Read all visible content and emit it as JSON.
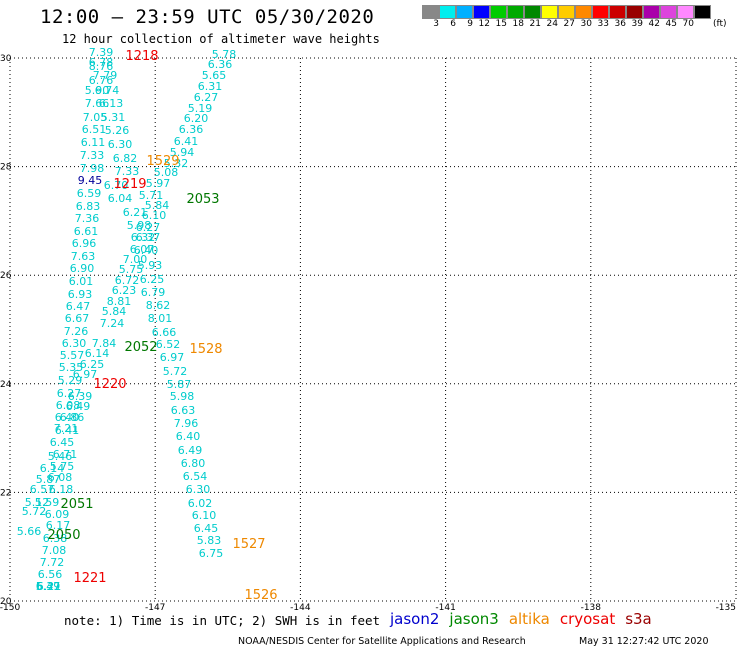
{
  "header": {
    "title": "12:00 – 23:59 UTC 05/30/2020",
    "subtitle": "12 hour collection of altimeter wave heights"
  },
  "legend": {
    "unit": "(ft)",
    "bins": [
      {
        "label": "3",
        "color": "#888888"
      },
      {
        "label": "6",
        "color": "#00eeee"
      },
      {
        "label": "9",
        "color": "#00b0ff"
      },
      {
        "label": "12",
        "color": "#0000ff"
      },
      {
        "label": "15",
        "color": "#00cc00"
      },
      {
        "label": "18",
        "color": "#00aa00"
      },
      {
        "label": "21",
        "color": "#008800"
      },
      {
        "label": "24",
        "color": "#ffff00"
      },
      {
        "label": "27",
        "color": "#ffcc00"
      },
      {
        "label": "30",
        "color": "#ff8800"
      },
      {
        "label": "33",
        "color": "#ff0000"
      },
      {
        "label": "36",
        "color": "#cc0000"
      },
      {
        "label": "39",
        "color": "#990000"
      },
      {
        "label": "42",
        "color": "#aa00aa"
      },
      {
        "label": "45",
        "color": "#dd44dd"
      },
      {
        "label": "70",
        "color": "#ff88ff"
      },
      {
        "label": "",
        "color": "#000000"
      }
    ]
  },
  "map": {
    "lat_labels": [
      "30",
      "28",
      "26",
      "24",
      "22",
      "20"
    ],
    "lon_labels": [
      "-150",
      "-147",
      "-144",
      "-141",
      "-138",
      "-135"
    ]
  },
  "colors": {
    "cyan": "#00cccc",
    "navy": "#000099",
    "red": "#ee0000",
    "green": "#007700",
    "orange": "#ee8800"
  },
  "passes": [
    {
      "label": "1218",
      "color": "red"
    },
    {
      "label": "1219",
      "color": "red"
    },
    {
      "label": "1220",
      "color": "red"
    },
    {
      "label": "1221",
      "color": "red"
    },
    {
      "label": "1529",
      "color": "orange"
    },
    {
      "label": "1528",
      "color": "orange"
    },
    {
      "label": "1527",
      "color": "orange"
    },
    {
      "label": "1526",
      "color": "orange"
    },
    {
      "label": "2053",
      "color": "green"
    },
    {
      "label": "2052",
      "color": "green"
    },
    {
      "label": "2051",
      "color": "green"
    },
    {
      "label": "2050",
      "color": "green"
    }
  ],
  "observations": [
    {
      "v": "7.39",
      "c": "cyan"
    },
    {
      "v": "6.78",
      "c": "cyan"
    },
    {
      "v": "8.76",
      "c": "cyan"
    },
    {
      "v": "7.79",
      "c": "cyan"
    },
    {
      "v": "6.76",
      "c": "cyan"
    },
    {
      "v": "5.90",
      "c": "cyan"
    },
    {
      "v": "6.74",
      "c": "cyan"
    },
    {
      "v": "7.66",
      "c": "cyan"
    },
    {
      "v": "6.13",
      "c": "cyan"
    },
    {
      "v": "7.05",
      "c": "cyan"
    },
    {
      "v": "5.31",
      "c": "cyan"
    },
    {
      "v": "6.51",
      "c": "cyan"
    },
    {
      "v": "5.26",
      "c": "cyan"
    },
    {
      "v": "6.11",
      "c": "cyan"
    },
    {
      "v": "6.30",
      "c": "cyan"
    },
    {
      "v": "7.33",
      "c": "cyan"
    },
    {
      "v": "6.82",
      "c": "cyan"
    },
    {
      "v": "7.98",
      "c": "cyan"
    },
    {
      "v": "7.33",
      "c": "cyan"
    },
    {
      "v": "9.45",
      "c": "navy"
    },
    {
      "v": "6.70",
      "c": "cyan"
    },
    {
      "v": "6.59",
      "c": "cyan"
    },
    {
      "v": "6.04",
      "c": "cyan"
    },
    {
      "v": "6.83",
      "c": "cyan"
    },
    {
      "v": "6.21",
      "c": "cyan"
    },
    {
      "v": "7.36",
      "c": "cyan"
    },
    {
      "v": "5.98",
      "c": "cyan"
    },
    {
      "v": "6.61",
      "c": "cyan"
    },
    {
      "v": "6.32",
      "c": "cyan"
    },
    {
      "v": "6.96",
      "c": "cyan"
    },
    {
      "v": "6.07",
      "c": "cyan"
    },
    {
      "v": "7.63",
      "c": "cyan"
    },
    {
      "v": "7.00",
      "c": "cyan"
    },
    {
      "v": "6.90",
      "c": "cyan"
    },
    {
      "v": "5.75",
      "c": "cyan"
    },
    {
      "v": "6.01",
      "c": "cyan"
    },
    {
      "v": "6.72",
      "c": "cyan"
    },
    {
      "v": "6.93",
      "c": "cyan"
    },
    {
      "v": "6.23",
      "c": "cyan"
    },
    {
      "v": "6.47",
      "c": "cyan"
    },
    {
      "v": "8.81",
      "c": "cyan"
    },
    {
      "v": "6.67",
      "c": "cyan"
    },
    {
      "v": "5.84",
      "c": "cyan"
    },
    {
      "v": "7.26",
      "c": "cyan"
    },
    {
      "v": "7.24",
      "c": "cyan"
    },
    {
      "v": "6.30",
      "c": "cyan"
    },
    {
      "v": "7.84",
      "c": "cyan"
    },
    {
      "v": "5.57",
      "c": "cyan"
    },
    {
      "v": "6.14",
      "c": "cyan"
    },
    {
      "v": "5.35",
      "c": "cyan"
    },
    {
      "v": "6.25",
      "c": "cyan"
    },
    {
      "v": "5.29",
      "c": "cyan"
    },
    {
      "v": "6.97",
      "c": "cyan"
    },
    {
      "v": "6.27",
      "c": "cyan"
    },
    {
      "v": "6.39",
      "c": "cyan"
    },
    {
      "v": "6.08",
      "c": "cyan"
    },
    {
      "v": "6.49",
      "c": "cyan"
    },
    {
      "v": "6.40",
      "c": "cyan"
    },
    {
      "v": "6.86",
      "c": "cyan"
    },
    {
      "v": "7.21",
      "c": "cyan"
    },
    {
      "v": "6.41",
      "c": "cyan"
    },
    {
      "v": "6.45",
      "c": "cyan"
    },
    {
      "v": "6.71",
      "c": "cyan"
    },
    {
      "v": "5.46",
      "c": "cyan"
    },
    {
      "v": "5.75",
      "c": "cyan"
    },
    {
      "v": "6.14",
      "c": "cyan"
    },
    {
      "v": "6.08",
      "c": "cyan"
    },
    {
      "v": "5.87",
      "c": "cyan"
    },
    {
      "v": "6.18",
      "c": "cyan"
    },
    {
      "v": "6.57",
      "c": "cyan"
    },
    {
      "v": "5.59",
      "c": "cyan"
    },
    {
      "v": "5.12",
      "c": "cyan"
    },
    {
      "v": "6.09",
      "c": "cyan"
    },
    {
      "v": "5.72",
      "c": "cyan"
    },
    {
      "v": "6.17",
      "c": "cyan"
    },
    {
      "v": "5.66",
      "c": "cyan"
    },
    {
      "v": "6.38",
      "c": "cyan"
    },
    {
      "v": "7.08",
      "c": "cyan"
    },
    {
      "v": "7.72",
      "c": "cyan"
    },
    {
      "v": "6.56",
      "c": "cyan"
    },
    {
      "v": "6.49",
      "c": "cyan"
    },
    {
      "v": "6.21",
      "c": "cyan"
    },
    {
      "v": "5.37",
      "c": "cyan"
    },
    {
      "v": "5.78",
      "c": "cyan"
    },
    {
      "v": "6.36",
      "c": "cyan"
    },
    {
      "v": "5.65",
      "c": "cyan"
    },
    {
      "v": "6.31",
      "c": "cyan"
    },
    {
      "v": "6.27",
      "c": "cyan"
    },
    {
      "v": "5.19",
      "c": "cyan"
    },
    {
      "v": "6.20",
      "c": "cyan"
    },
    {
      "v": "6.36",
      "c": "cyan"
    },
    {
      "v": "6.41",
      "c": "cyan"
    },
    {
      "v": "5.94",
      "c": "cyan"
    },
    {
      "v": "5.32",
      "c": "cyan"
    },
    {
      "v": "5.08",
      "c": "cyan"
    },
    {
      "v": "5.97",
      "c": "cyan"
    },
    {
      "v": "5.71",
      "c": "cyan"
    },
    {
      "v": "5.84",
      "c": "cyan"
    },
    {
      "v": "6.10",
      "c": "cyan"
    },
    {
      "v": "6.27",
      "c": "cyan"
    },
    {
      "v": "6.37",
      "c": "cyan"
    },
    {
      "v": "6.40",
      "c": "cyan"
    },
    {
      "v": "5.93",
      "c": "cyan"
    },
    {
      "v": "6.25",
      "c": "cyan"
    },
    {
      "v": "6.79",
      "c": "cyan"
    },
    {
      "v": "8.62",
      "c": "cyan"
    },
    {
      "v": "8.01",
      "c": "cyan"
    },
    {
      "v": "6.66",
      "c": "cyan"
    },
    {
      "v": "6.52",
      "c": "cyan"
    },
    {
      "v": "6.97",
      "c": "cyan"
    },
    {
      "v": "5.72",
      "c": "cyan"
    },
    {
      "v": "5.87",
      "c": "cyan"
    },
    {
      "v": "5.98",
      "c": "cyan"
    },
    {
      "v": "6.63",
      "c": "cyan"
    },
    {
      "v": "7.96",
      "c": "cyan"
    },
    {
      "v": "6.40",
      "c": "cyan"
    },
    {
      "v": "6.49",
      "c": "cyan"
    },
    {
      "v": "6.80",
      "c": "cyan"
    },
    {
      "v": "6.54",
      "c": "cyan"
    },
    {
      "v": "6.30",
      "c": "cyan"
    },
    {
      "v": "6.02",
      "c": "cyan"
    },
    {
      "v": "6.10",
      "c": "cyan"
    },
    {
      "v": "6.45",
      "c": "cyan"
    },
    {
      "v": "5.83",
      "c": "cyan"
    },
    {
      "v": "6.75",
      "c": "cyan"
    }
  ],
  "footer": {
    "note": "note: 1) Time is in UTC; 2) SWH is in feet",
    "satellites": [
      {
        "name": "jason2",
        "color": "#0000cc"
      },
      {
        "name": "jason3",
        "color": "#008800"
      },
      {
        "name": "altika",
        "color": "#ee8800"
      },
      {
        "name": "cryosat",
        "color": "#ee0000"
      },
      {
        "name": "s3a",
        "color": "#990000"
      }
    ],
    "credit": "NOAA/NESDIS Center for Satellite Applications and Research",
    "timestamp": "May 31 12:27:42 UTC 2020"
  }
}
